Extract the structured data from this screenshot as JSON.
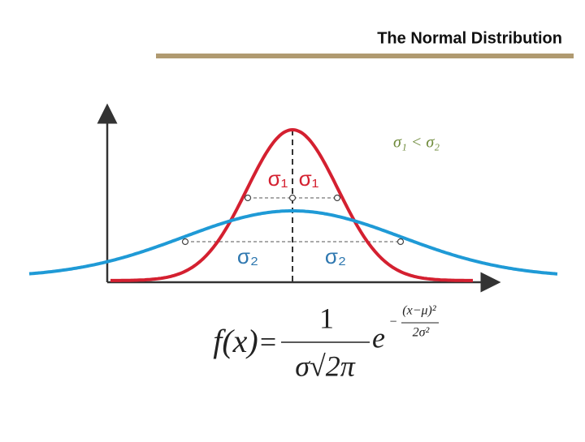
{
  "header": {
    "title": "The Normal Distribution"
  },
  "diagram": {
    "comparison": "σ₁ < σ₂",
    "sigma1_labels": [
      "σ₁",
      "σ₁"
    ],
    "sigma2_labels": [
      "σ₂",
      "σ₂"
    ],
    "formula": {
      "lhs": "f(x)",
      "equals": "=",
      "numerator": "1",
      "denominator": "σ√2π",
      "base": "e",
      "exponent_sign": "−",
      "exponent_numerator": "(x−μ)²",
      "exponent_denominator": "2σ²"
    }
  }
}
